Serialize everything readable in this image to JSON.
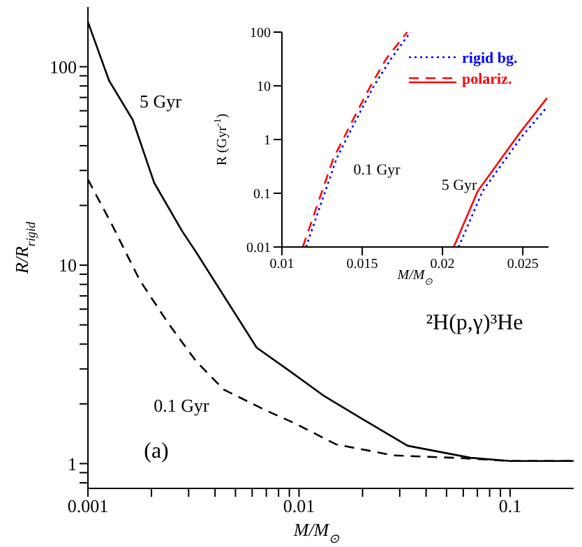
{
  "chart_data": [
    {
      "type": "line",
      "xlabel": "M/M$_{⊙}$",
      "ylabel": "R/R$_{rigid}$",
      "log": "xy",
      "xlim": [
        0.001,
        0.2
      ],
      "ylim": [
        0.75,
        200
      ],
      "xticks": [
        0.001,
        {
          "value": 0.002,
          "label": null
        },
        {
          "value": 0.003,
          "label": null
        },
        {
          "value": 0.004,
          "label": null
        },
        {
          "value": 0.005,
          "label": null
        },
        {
          "value": 0.006,
          "label": null
        },
        {
          "value": 0.007,
          "label": null
        },
        {
          "value": 0.008,
          "label": null
        },
        {
          "value": 0.009,
          "label": null
        },
        0.01,
        {
          "value": 0.02,
          "label": null
        },
        {
          "value": 0.03,
          "label": null
        },
        {
          "value": 0.04,
          "label": null
        },
        {
          "value": 0.05,
          "label": null
        },
        {
          "value": 0.06,
          "label": null
        },
        {
          "value": 0.07,
          "label": null
        },
        {
          "value": 0.08,
          "label": null
        },
        {
          "value": 0.09,
          "label": null
        },
        0.1
      ],
      "yticks": [
        {
          "value": 0.8,
          "label": null
        },
        {
          "value": 0.9,
          "label": null
        },
        1,
        {
          "value": 2,
          "label": null
        },
        {
          "value": 3,
          "label": null
        },
        {
          "value": 4,
          "label": null
        },
        {
          "value": 5,
          "label": null
        },
        {
          "value": 6,
          "label": null
        },
        {
          "value": 7,
          "label": null
        },
        {
          "value": 8,
          "label": null
        },
        {
          "value": 9,
          "label": null
        },
        10,
        {
          "value": 20,
          "label": null
        },
        {
          "value": 30,
          "label": null
        },
        {
          "value": 40,
          "label": null
        },
        {
          "value": 50,
          "label": null
        },
        {
          "value": 60,
          "label": null
        },
        {
          "value": 70,
          "label": null
        },
        {
          "value": 80,
          "label": null
        },
        {
          "value": 90,
          "label": null
        },
        100
      ],
      "series": [
        {
          "color": "#000000",
          "line_style": "solid",
          "x": [
            0.001,
            0.00126,
            0.00163,
            0.00206,
            0.0028,
            0.00326,
            0.0063,
            0.0089,
            0.013,
            0.0205,
            0.0327,
            0.065,
            0.1,
            0.2
          ],
          "values": [
            168,
            85,
            54,
            26,
            14.8,
            11.6,
            3.84,
            2.96,
            2.21,
            1.65,
            1.23,
            1.07,
            1.03,
            1.03
          ]
        },
        {
          "color": "#000000",
          "line_style": "dashed",
          "x": [
            0.001,
            0.0013,
            0.00176,
            0.0024,
            0.00326,
            0.0044,
            0.007,
            0.0095,
            0.015,
            0.028,
            0.06,
            0.1,
            0.2
          ],
          "values": [
            27,
            16,
            8.4,
            5.1,
            3.27,
            2.36,
            1.85,
            1.6,
            1.25,
            1.1,
            1.065,
            1.03,
            1.03
          ]
        }
      ],
      "annotations": [
        "5 Gyr",
        "0.1 Gyr",
        "(a)",
        "²H(p,γ)³He"
      ]
    },
    {
      "type": "line",
      "xlabel": "M/M$_{⊙}$",
      "ylabel": "R (Gyr$^{-1}$)",
      "log": "y",
      "xlim": [
        0.01,
        0.0266
      ],
      "ylim": [
        0.01,
        100
      ],
      "xticks": [
        0.01,
        0.015,
        0.02,
        0.025
      ],
      "yticks": [
        0.01,
        0.1,
        1,
        10,
        100
      ],
      "legend": "top right",
      "series": [
        {
          "name": "rigid bg.",
          "color": "#0000ff",
          "line_style": "dotted",
          "x": [
            0.0115,
            0.0134,
            0.0147,
            0.0157,
            0.0168,
            0.018
          ],
          "values": [
            0.01,
            0.44,
            2.6,
            9.7,
            32,
            100
          ]
        },
        {
          "name": "polariz.",
          "color": "#ff0000",
          "line_style": "dashed",
          "x": [
            0.0113,
            0.0132,
            0.0145,
            0.0155,
            0.0165,
            0.0178
          ],
          "values": [
            0.01,
            0.44,
            2.6,
            9.7,
            32,
            100
          ]
        },
        {
          "color": "#0000ff",
          "line_style": "dotted",
          "x": [
            0.021,
            0.0225,
            0.0249,
            0.0265
          ],
          "values": [
            0.01,
            0.11,
            1.1,
            4
          ]
        },
        {
          "color": "#ff0000",
          "line_style": "solid",
          "x": [
            0.0207,
            0.0222,
            0.0247,
            0.0265
          ],
          "values": [
            0.01,
            0.11,
            1.2,
            5.9
          ]
        }
      ],
      "annotations": [
        "0.1 Gyr",
        "5 Gyr"
      ]
    }
  ]
}
